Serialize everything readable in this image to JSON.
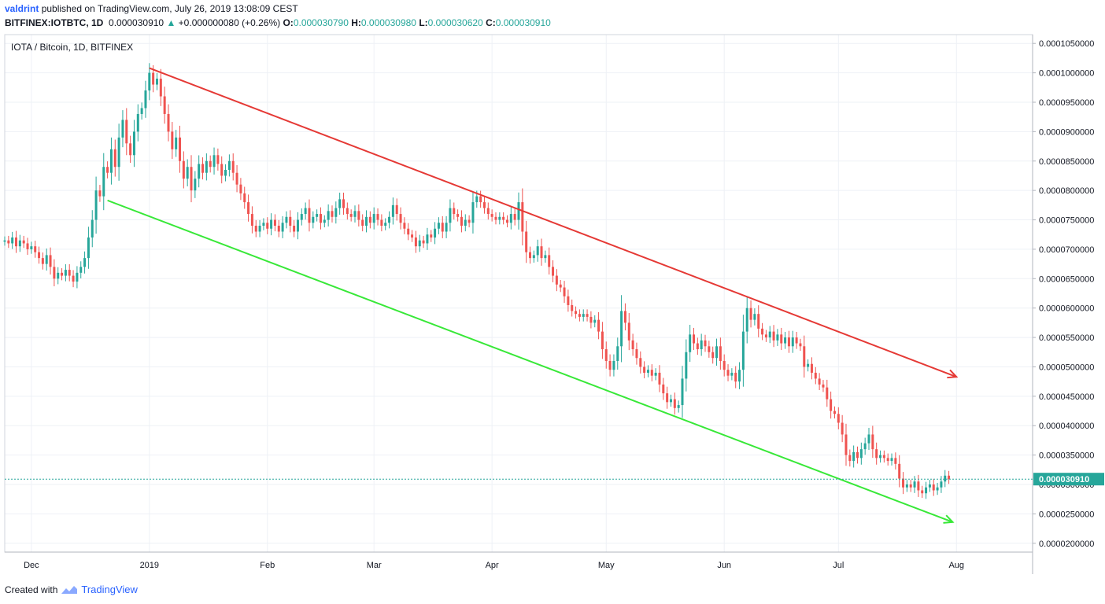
{
  "header": {
    "user": "valdrint",
    "published": "published on TradingView.com, July 26, 2019 13:08:09 CEST",
    "symbol": "BITFINEX:IOTBTC, 1D",
    "last": "0.000030910",
    "change_arrow": "▲",
    "change": "+0.000000080 (+0.26%)",
    "o_label": "O:",
    "o_value": "0.000030790",
    "h_label": "H:",
    "h_value": "0.000030980",
    "l_label": "L:",
    "l_value": "0.000030620",
    "c_label": "C:",
    "c_value": "0.000030910"
  },
  "footer": {
    "created_with": "Created with",
    "brand": "TradingView"
  },
  "colors": {
    "up": "#26a69a",
    "down": "#ef5350",
    "upper_trendline": "#e53935",
    "lower_trendline": "#38e838",
    "grid": "#eef1f6",
    "price_line": "#26a69a"
  },
  "chart_data": {
    "type": "candlestick",
    "title": "IOTA / Bitcoin, 1D, BITFINEX",
    "xlabel": "",
    "ylabel": "",
    "x_range": [
      "2018-11-24",
      "2019-08-21"
    ],
    "ylim": [
      1.85e-05,
      0.0001065
    ],
    "y_ticks": [
      "0.0000200000",
      "0.0000250000",
      "0.0000300000",
      "0.0000350000",
      "0.0000400000",
      "0.0000450000",
      "0.0000500000",
      "0.0000550000",
      "0.0000600000",
      "0.0000650000",
      "0.0000700000",
      "0.0000750000",
      "0.0000800000",
      "0.0000850000",
      "0.0000900000",
      "0.0000950000",
      "0.0001000000",
      "0.0001050000"
    ],
    "y_tick_values": [
      2e-05,
      2.5e-05,
      3e-05,
      3.5e-05,
      4e-05,
      4.5e-05,
      5e-05,
      5.5e-05,
      6e-05,
      6.5e-05,
      7e-05,
      7.5e-05,
      8e-05,
      8.5e-05,
      9e-05,
      9.5e-05,
      0.0001,
      0.000105
    ],
    "x_ticks": [
      {
        "date": "2018-12-01",
        "label": "Dec"
      },
      {
        "date": "2019-01-01",
        "label": "2019"
      },
      {
        "date": "2019-02-01",
        "label": "Feb"
      },
      {
        "date": "2019-03-01",
        "label": "Mar"
      },
      {
        "date": "2019-04-01",
        "label": "Apr"
      },
      {
        "date": "2019-05-01",
        "label": "May"
      },
      {
        "date": "2019-06-01",
        "label": "Jun"
      },
      {
        "date": "2019-07-01",
        "label": "Jul"
      },
      {
        "date": "2019-08-01",
        "label": "Aug"
      }
    ],
    "current_price_label": "0.000030910",
    "current_price": 3.091e-05,
    "first_date": "2018-11-24",
    "closes": [
      7.15e-05,
      7.1e-05,
      7.2e-05,
      7.05e-05,
      7.15e-05,
      7.1e-05,
      7e-05,
      7.05e-05,
      6.95e-05,
      6.85e-05,
      6.75e-05,
      6.9e-05,
      6.7e-05,
      6.5e-05,
      6.6e-05,
      6.55e-05,
      6.65e-05,
      6.55e-05,
      6.45e-05,
      6.6e-05,
      6.7e-05,
      6.85e-05,
      7.2e-05,
      7.5e-05,
      8e-05,
      7.9e-05,
      8.4e-05,
      8.3e-05,
      8.7e-05,
      8.4e-05,
      8.9e-05,
      9.2e-05,
      8.8e-05,
      8.6e-05,
      9e-05,
      9.3e-05,
      9.4e-05,
      9.7e-05,
      0.0001,
      9.8e-05,
      9.9e-05,
      9.6e-05,
      9.3e-05,
      9e-05,
      8.7e-05,
      8.9e-05,
      8.5e-05,
      8.2e-05,
      8.4e-05,
      8e-05,
      8.2e-05,
      8.45e-05,
      8.3e-05,
      8.5e-05,
      8.4e-05,
      8.6e-05,
      8.45e-05,
      8.25e-05,
      8.35e-05,
      8.5e-05,
      8.3e-05,
      8.1e-05,
      7.95e-05,
      7.8e-05,
      7.6e-05,
      7.4e-05,
      7.3e-05,
      7.4e-05,
      7.45e-05,
      7.35e-05,
      7.5e-05,
      7.4e-05,
      7.3e-05,
      7.45e-05,
      7.55e-05,
      7.4e-05,
      7.3e-05,
      7.5e-05,
      7.6e-05,
      7.7e-05,
      7.45e-05,
      7.55e-05,
      7.6e-05,
      7.45e-05,
      7.5e-05,
      7.65e-05,
      7.55e-05,
      7.7e-05,
      7.85e-05,
      7.7e-05,
      7.6e-05,
      7.55e-05,
      7.65e-05,
      7.5e-05,
      7.4e-05,
      7.55e-05,
      7.45e-05,
      7.6e-05,
      7.5e-05,
      7.4e-05,
      7.45e-05,
      7.55e-05,
      7.75e-05,
      7.6e-05,
      7.45e-05,
      7.35e-05,
      7.25e-05,
      7.2e-05,
      7.05e-05,
      7.15e-05,
      7.1e-05,
      7.25e-05,
      7.2e-05,
      7.35e-05,
      7.45e-05,
      7.3e-05,
      7.45e-05,
      7.7e-05,
      7.6e-05,
      7.55e-05,
      7.4e-05,
      7.5e-05,
      7.45e-05,
      7.8e-05,
      7.9e-05,
      7.8e-05,
      7.7e-05,
      7.6e-05,
      7.55e-05,
      7.5e-05,
      7.55e-05,
      7.5e-05,
      7.45e-05,
      7.6e-05,
      7.5e-05,
      7.8e-05,
      7.3e-05,
      6.95e-05,
      6.85e-05,
      6.9e-05,
      7.05e-05,
      6.85e-05,
      6.9e-05,
      6.7e-05,
      6.55e-05,
      6.4e-05,
      6.35e-05,
      6.2e-05,
      6.05e-05,
      5.95e-05,
      5.9e-05,
      5.85e-05,
      5.9e-05,
      5.85e-05,
      5.75e-05,
      5.8e-05,
      5.6e-05,
      5.3e-05,
      5.1e-05,
      4.95e-05,
      5.1e-05,
      5.35e-05,
      5.95e-05,
      5.75e-05,
      5.45e-05,
      5.3e-05,
      5.15e-05,
      5e-05,
      4.9e-05,
      4.95e-05,
      4.85e-05,
      4.9e-05,
      4.7e-05,
      4.55e-05,
      4.4e-05,
      4.45e-05,
      4.3e-05,
      4.35e-05,
      4.8e-05,
      5.25e-05,
      5.55e-05,
      5.4e-05,
      5.3e-05,
      5.45e-05,
      5.35e-05,
      5.25e-05,
      5.15e-05,
      5.35e-05,
      5.1e-05,
      4.95e-05,
      4.85e-05,
      4.9e-05,
      4.75e-05,
      4.95e-05,
      5.6e-05,
      6e-05,
      5.8e-05,
      5.9e-05,
      5.65e-05,
      5.55e-05,
      5.5e-05,
      5.6e-05,
      5.45e-05,
      5.55e-05,
      5.4e-05,
      5.5e-05,
      5.35e-05,
      5.5e-05,
      5.4e-05,
      5.35e-05,
      5e-05,
      5.05e-05,
      4.9e-05,
      4.8e-05,
      4.7e-05,
      4.65e-05,
      4.45e-05,
      4.25e-05,
      4.2e-05,
      4.05e-05,
      3.85e-05,
      3.5e-05,
      3.4e-05,
      3.55e-05,
      3.45e-05,
      3.6e-05,
      3.7e-05,
      3.85e-05,
      3.6e-05,
      3.45e-05,
      3.5e-05,
      3.45e-05,
      3.4e-05,
      3.45e-05,
      3.35e-05,
      3.1e-05,
      2.95e-05,
      3e-05,
      2.95e-05,
      3.05e-05,
      2.9e-05,
      2.85e-05,
      2.95e-05,
      3e-05,
      2.9e-05,
      2.95e-05,
      3.05e-05,
      3.15e-05,
      3.091e-05
    ],
    "trendlines": [
      {
        "from": [
          "2019-01-01",
          0.0001008
        ],
        "to": [
          "2019-08-01",
          4.83e-05
        ]
      },
      {
        "from": [
          "2018-12-21",
          7.83e-05
        ],
        "to": [
          "2019-07-31",
          2.36e-05
        ]
      }
    ]
  }
}
